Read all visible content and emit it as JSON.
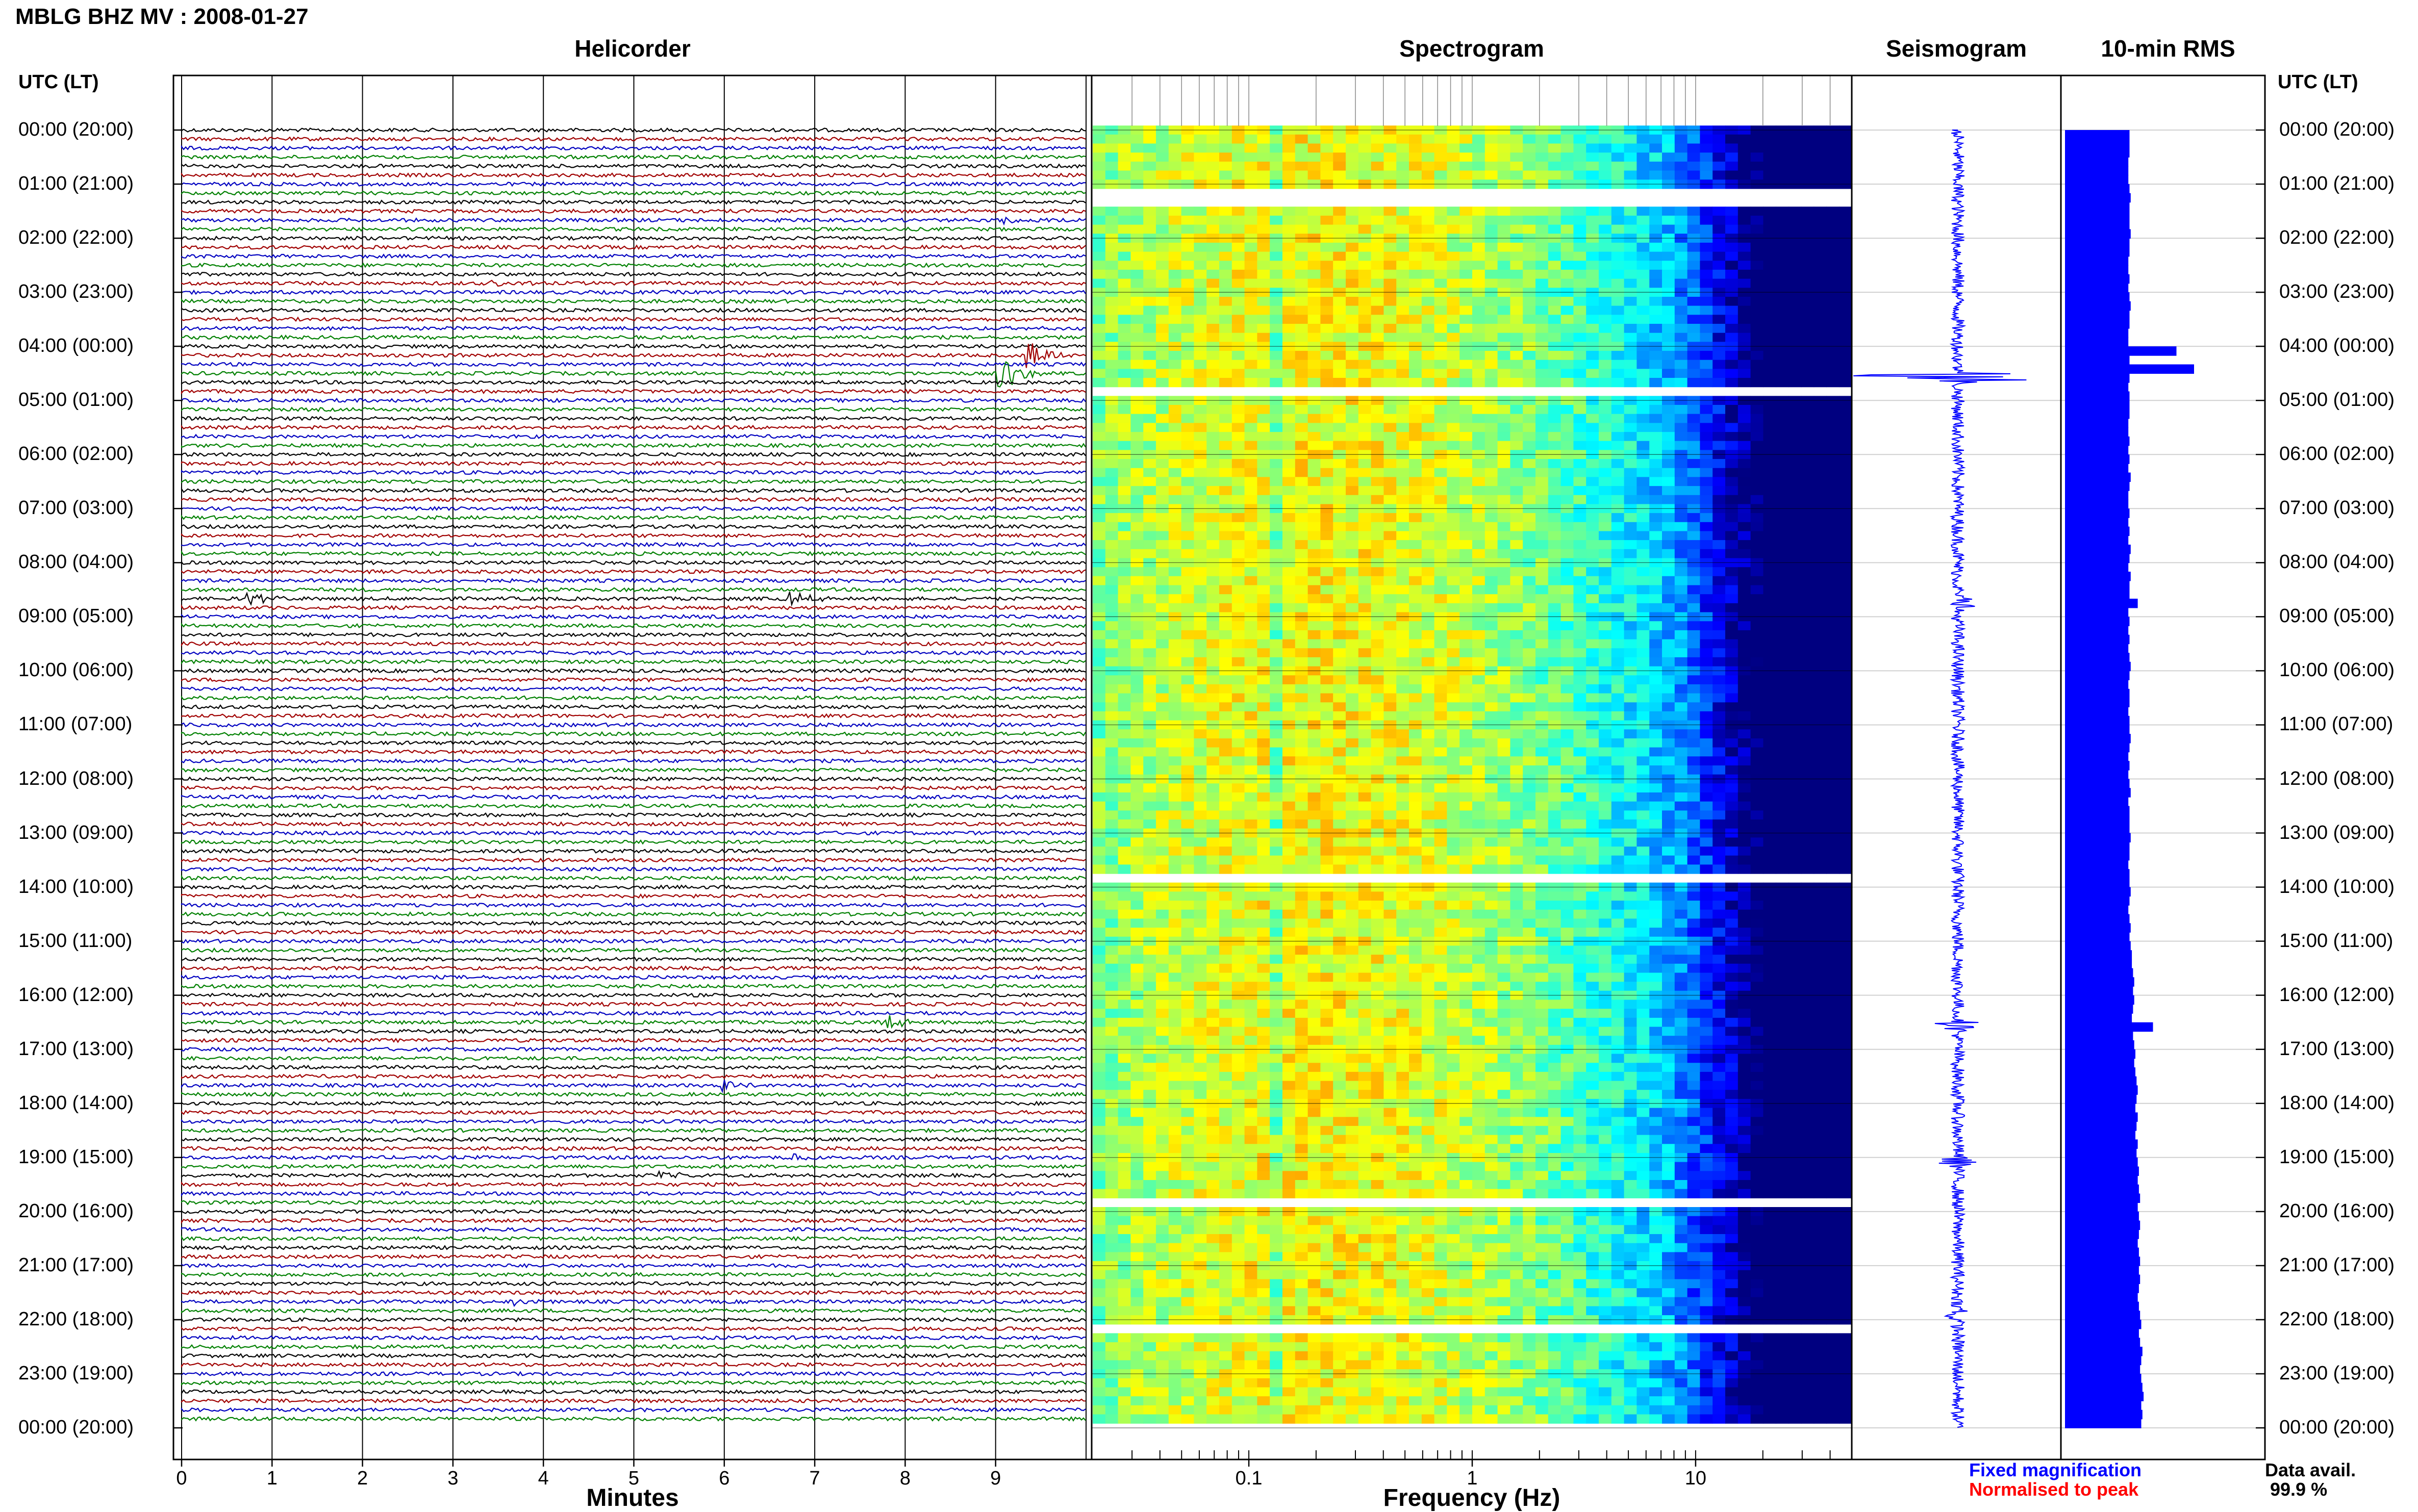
{
  "title": "MBLG BHZ MV : 2008-01-27",
  "panels": {
    "helicorder": "Helicorder",
    "spectrogram": "Spectrogram",
    "seismogram": "Seismogram",
    "rms": "10-min RMS"
  },
  "time_axis_header": "UTC (LT)",
  "hour_labels": [
    "00:00 (20:00)",
    "01:00 (21:00)",
    "02:00 (22:00)",
    "03:00 (23:00)",
    "04:00 (00:00)",
    "05:00 (01:00)",
    "06:00 (02:00)",
    "07:00 (03:00)",
    "08:00 (04:00)",
    "09:00 (05:00)",
    "10:00 (06:00)",
    "11:00 (07:00)",
    "12:00 (08:00)",
    "13:00 (09:00)",
    "14:00 (10:00)",
    "15:00 (11:00)",
    "16:00 (12:00)",
    "17:00 (13:00)",
    "18:00 (14:00)",
    "19:00 (15:00)",
    "20:00 (16:00)",
    "21:00 (17:00)",
    "22:00 (18:00)",
    "23:00 (19:00)",
    "00:00 (20:00)"
  ],
  "minutes_axis": {
    "label": "Minutes",
    "ticks": [
      "0",
      "1",
      "2",
      "3",
      "4",
      "5",
      "6",
      "7",
      "8",
      "9"
    ]
  },
  "frequency_axis": {
    "label": "Frequency (Hz)",
    "ticks": [
      "0.1",
      "1",
      "10"
    ],
    "scale": "log"
  },
  "legend": {
    "fixed": "Fixed magnification",
    "normalised": "Normalised to peak",
    "fixed_color": "#0000ff",
    "normalised_color": "#ff0000"
  },
  "data_availability": {
    "label": "Data avail.",
    "value": "99.9 %"
  },
  "colors": {
    "trace_cycle": [
      "#000000",
      "#a00000",
      "#0000c0",
      "#008000"
    ],
    "seismogram": "#0000ff",
    "rms": "#0000ff"
  },
  "chart_data": [
    {
      "type": "line",
      "name": "helicorder",
      "x_unit": "Minutes",
      "xlim": [
        0,
        10
      ],
      "rows": 144,
      "row_minutes": 10,
      "events": [
        {
          "row": 10,
          "minute": 9.1,
          "amplitude": 0.6
        },
        {
          "row": 17,
          "minute": 3.5,
          "amplitude": 0.5
        },
        {
          "row": 19,
          "minute": 7.3,
          "amplitude": 0.4
        },
        {
          "row": 25,
          "minute": 9.4,
          "amplitude": 2.2
        },
        {
          "row": 27,
          "minute": 9.1,
          "amplitude": 2.6
        },
        {
          "row": 52,
          "minute": 0.8,
          "amplitude": 0.8
        },
        {
          "row": 52,
          "minute": 6.8,
          "amplitude": 1.0
        },
        {
          "row": 99,
          "minute": 7.8,
          "amplitude": 1.2
        },
        {
          "row": 106,
          "minute": 6.0,
          "amplitude": 0.9
        },
        {
          "row": 114,
          "minute": 6.8,
          "amplitude": 0.7
        },
        {
          "row": 116,
          "minute": 5.3,
          "amplitude": 0.6
        },
        {
          "row": 130,
          "minute": 3.7,
          "amplitude": 0.4
        }
      ]
    },
    {
      "type": "heatmap",
      "name": "spectrogram",
      "x_unit": "Hz",
      "xlim": [
        0.02,
        50
      ],
      "x_scale": "log",
      "peak_frequency_hz": 0.2,
      "gaps_rows": [
        7,
        8,
        29,
        83,
        119,
        133
      ]
    },
    {
      "type": "line",
      "name": "seismogram",
      "spikes": [
        {
          "row": 27,
          "amplitude": 0.55
        },
        {
          "row": 52,
          "amplitude": 0.12
        },
        {
          "row": 99,
          "amplitude": 0.12
        },
        {
          "row": 114,
          "amplitude": 0.1
        },
        {
          "row": 131,
          "amplitude": 0.08
        }
      ]
    },
    {
      "type": "bar",
      "name": "rms",
      "orientation": "horizontal",
      "values": [
        0.55,
        0.55,
        0.55,
        0.54,
        0.54,
        0.54,
        0.55,
        0.56,
        0.55,
        0.55,
        0.55,
        0.56,
        0.55,
        0.55,
        0.54,
        0.54,
        0.55,
        0.54,
        0.55,
        0.56,
        0.55,
        0.55,
        0.54,
        0.54,
        0.55,
        0.55,
        0.56,
        0.55,
        0.54,
        0.55,
        0.55,
        0.55,
        0.54,
        0.54,
        0.55,
        0.54,
        0.55,
        0.54,
        0.56,
        0.55,
        0.54,
        0.54,
        0.55,
        0.54,
        0.55,
        0.54,
        0.56,
        0.55,
        0.54,
        0.56,
        0.55,
        0.55,
        0.54,
        0.54,
        0.55,
        0.54,
        0.55,
        0.54,
        0.55,
        0.56,
        0.55,
        0.54,
        0.55,
        0.55,
        0.54,
        0.55,
        0.55,
        0.56,
        0.55,
        0.54,
        0.55,
        0.54,
        0.55,
        0.56,
        0.54,
        0.55,
        0.55,
        0.55,
        0.56,
        0.55,
        0.55,
        0.54,
        0.55,
        0.55,
        0.56,
        0.55,
        0.54,
        0.55,
        0.56,
        0.55,
        0.56,
        0.57,
        0.57,
        0.58,
        0.59,
        0.58,
        0.59,
        0.58,
        0.57,
        0.59,
        0.58,
        0.59,
        0.6,
        0.59,
        0.6,
        0.61,
        0.62,
        0.61,
        0.6,
        0.62,
        0.61,
        0.6,
        0.62,
        0.61,
        0.62,
        0.63,
        0.62,
        0.63,
        0.64,
        0.62,
        0.63,
        0.64,
        0.63,
        0.62,
        0.63,
        0.64,
        0.63,
        0.64,
        0.63,
        0.62,
        0.63,
        0.64,
        0.65,
        0.63,
        0.64,
        0.66,
        0.65,
        0.64,
        0.65,
        0.66,
        0.67,
        0.65,
        0.66,
        0.65
      ],
      "peaks": [
        {
          "row": 24,
          "value": 0.95
        },
        {
          "row": 26,
          "value": 1.1
        },
        {
          "row": 52,
          "value": 0.62
        },
        {
          "row": 99,
          "value": 0.75
        }
      ]
    }
  ]
}
